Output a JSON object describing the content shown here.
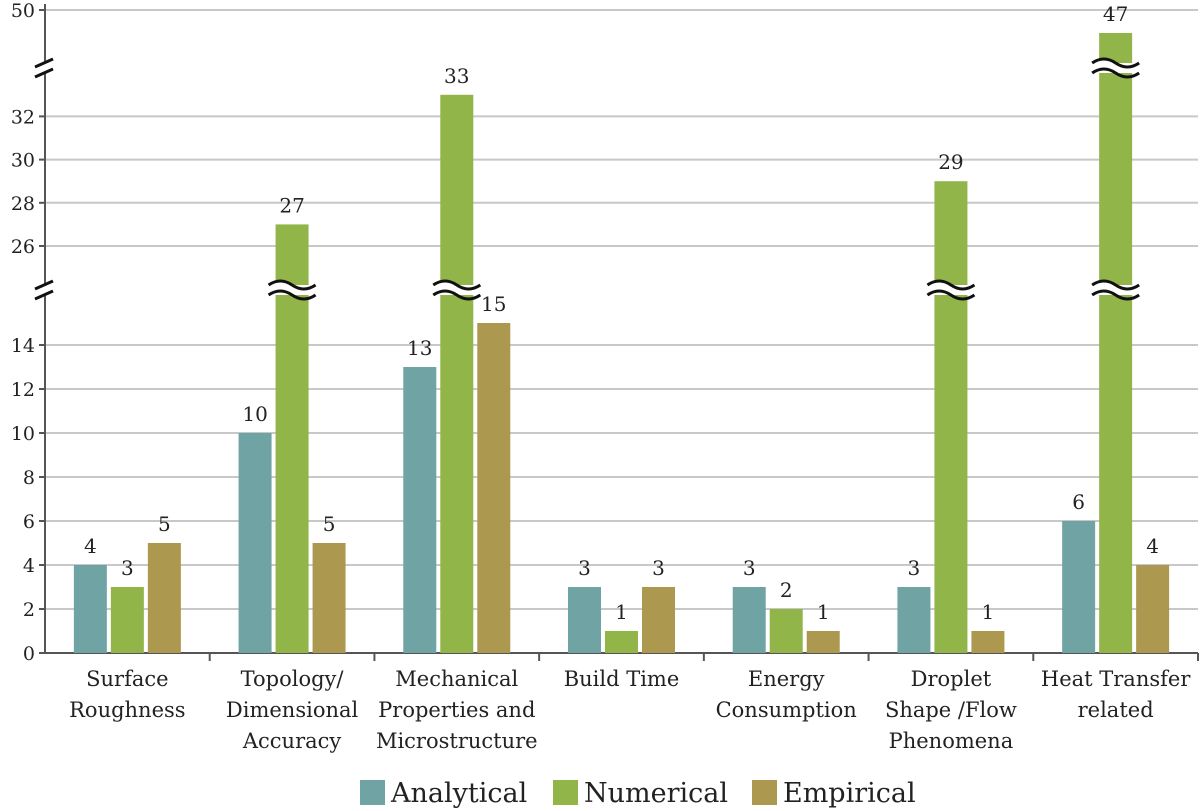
{
  "chart_data": {
    "type": "bar",
    "categories": [
      [
        "Surface",
        "Roughness"
      ],
      [
        "Topology/",
        "Dimensional",
        "Accuracy"
      ],
      [
        "Mechanical",
        "Properties and",
        "Microstructure"
      ],
      [
        "Build Time"
      ],
      [
        "Energy",
        "Consumption"
      ],
      [
        "Droplet",
        "Shape /Flow",
        "Phenomena"
      ],
      [
        "Heat Transfer",
        "related"
      ]
    ],
    "series": [
      {
        "name": "Analytical",
        "color": "#70a3a3",
        "values": [
          4,
          10,
          13,
          3,
          3,
          3,
          6
        ]
      },
      {
        "name": "Numerical",
        "color": "#92b54a",
        "values": [
          3,
          27,
          33,
          1,
          2,
          29,
          47
        ]
      },
      {
        "name": "Empirical",
        "color": "#ad9850",
        "values": [
          5,
          5,
          15,
          3,
          1,
          1,
          4
        ]
      }
    ],
    "data_labels": [
      [
        "4",
        "3",
        "5"
      ],
      [
        "10",
        "27",
        "5"
      ],
      [
        "13",
        "33",
        "15"
      ],
      [
        "3",
        "1",
        "3"
      ],
      [
        "3",
        "2",
        "1"
      ],
      [
        "3",
        "29",
        "1"
      ],
      [
        "6",
        "47",
        "4"
      ]
    ],
    "ytick_labels": [
      "0",
      "2",
      "4",
      "6",
      "8",
      "10",
      "12",
      "14",
      "26",
      "28",
      "30",
      "32",
      "50"
    ],
    "y_axis_breaks": [
      [
        15,
        25
      ],
      [
        33,
        50
      ]
    ],
    "ylim": [
      0,
      50
    ],
    "grid": true,
    "legend_position": "bottom",
    "title": "",
    "xlabel": "",
    "ylabel": ""
  }
}
